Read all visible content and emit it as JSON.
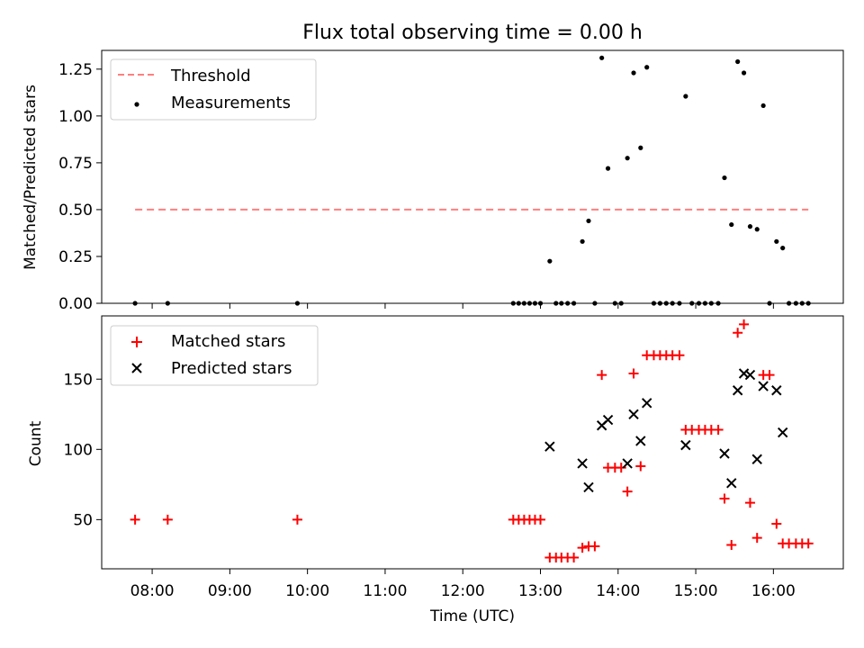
{
  "title": "Flux total observing time = 0.00 h",
  "chart_data": [
    {
      "type": "scatter",
      "ylabel": "Matched/Predicted stars",
      "xlabel": "",
      "ylim": [
        0,
        1.35
      ],
      "yticks": [
        0,
        0.25,
        0.5,
        0.75,
        1.0,
        1.25
      ],
      "ytick_labels": [
        "0.00",
        "0.25",
        "0.50",
        "0.75",
        "1.00",
        "1.25"
      ],
      "grid": false,
      "legend": {
        "placement": "upper-left",
        "entries": [
          "Threshold",
          "Measurements"
        ]
      },
      "threshold": {
        "name": "Threshold",
        "value": 0.5,
        "x_range": [
          7.78,
          16.45
        ],
        "color": "#ff7f7f",
        "style": "dashed"
      },
      "series": [
        {
          "name": "Measurements",
          "marker": "dot",
          "color": "#000000",
          "x": [
            7.78,
            8.2,
            9.87,
            12.65,
            12.72,
            12.79,
            12.86,
            12.93,
            13.0,
            13.12,
            13.2,
            13.27,
            13.35,
            13.43,
            13.54,
            13.62,
            13.7,
            13.79,
            13.87,
            13.96,
            14.04,
            14.12,
            14.2,
            14.29,
            14.37,
            14.46,
            14.54,
            14.62,
            14.7,
            14.79,
            14.87,
            14.95,
            15.04,
            15.12,
            15.2,
            15.29,
            15.37,
            15.46,
            15.54,
            15.62,
            15.7,
            15.79,
            15.87,
            15.95,
            16.04,
            16.12,
            16.2,
            16.29,
            16.37,
            16.45
          ],
          "y": [
            0,
            0,
            0,
            0,
            0,
            0,
            0,
            0,
            0,
            0.225,
            0,
            0,
            0,
            0,
            0.33,
            0.44,
            0,
            1.31,
            0.72,
            0,
            0,
            0.775,
            1.23,
            0.83,
            1.26,
            0,
            0,
            0,
            0,
            0,
            1.105,
            0,
            0,
            0,
            0,
            0,
            0.67,
            0.42,
            1.29,
            1.23,
            0.41,
            0.395,
            1.055,
            0,
            0.33,
            0.295,
            0,
            0,
            0,
            0
          ]
        }
      ]
    },
    {
      "type": "scatter",
      "xlabel": "Time (UTC)",
      "ylabel": "Count",
      "ylim": [
        15,
        195
      ],
      "yticks": [
        50,
        100,
        150
      ],
      "ytick_labels": [
        "50",
        "100",
        "150"
      ],
      "xlim": [
        7.35,
        16.9
      ],
      "xticks": [
        8,
        9,
        10,
        11,
        12,
        13,
        14,
        15,
        16
      ],
      "xtick_labels": [
        "08:00",
        "09:00",
        "10:00",
        "11:00",
        "12:00",
        "13:00",
        "14:00",
        "15:00",
        "16:00"
      ],
      "grid": false,
      "legend": {
        "placement": "upper-left",
        "entries": [
          "Matched stars",
          "Predicted stars"
        ]
      },
      "series": [
        {
          "name": "Matched stars",
          "marker": "plus",
          "color": "#ff0000",
          "x": [
            7.78,
            8.2,
            9.87,
            12.65,
            12.72,
            12.79,
            12.86,
            12.93,
            13.0,
            13.12,
            13.2,
            13.27,
            13.35,
            13.43,
            13.54,
            13.62,
            13.7,
            13.79,
            13.87,
            13.96,
            14.04,
            14.12,
            14.2,
            14.29,
            14.37,
            14.46,
            14.54,
            14.62,
            14.7,
            14.79,
            14.87,
            14.95,
            15.04,
            15.12,
            15.2,
            15.29,
            15.37,
            15.46,
            15.54,
            15.62,
            15.7,
            15.79,
            15.87,
            15.95,
            16.04,
            16.12,
            16.2,
            16.29,
            16.37,
            16.45
          ],
          "y": [
            50,
            50,
            50,
            50,
            50,
            50,
            50,
            50,
            50,
            23,
            23,
            23,
            23,
            23,
            30,
            31,
            31,
            153,
            87,
            87,
            87,
            70,
            154,
            88,
            167,
            167,
            167,
            167,
            167,
            167,
            114,
            114,
            114,
            114,
            114,
            114,
            65,
            32,
            183,
            189,
            62,
            37,
            153,
            153,
            47,
            33,
            33,
            33,
            33,
            33
          ]
        },
        {
          "name": "Predicted stars",
          "marker": "x",
          "color": "#000000",
          "x": [
            13.12,
            13.54,
            13.62,
            13.79,
            13.87,
            14.12,
            14.2,
            14.29,
            14.37,
            14.87,
            15.37,
            15.46,
            15.54,
            15.62,
            15.7,
            15.79,
            15.87,
            16.04,
            16.12
          ],
          "y": [
            102,
            90,
            73,
            117,
            121,
            90,
            125,
            106,
            133,
            103,
            97,
            76,
            142,
            154,
            153,
            93,
            145,
            142,
            112
          ]
        }
      ]
    }
  ]
}
